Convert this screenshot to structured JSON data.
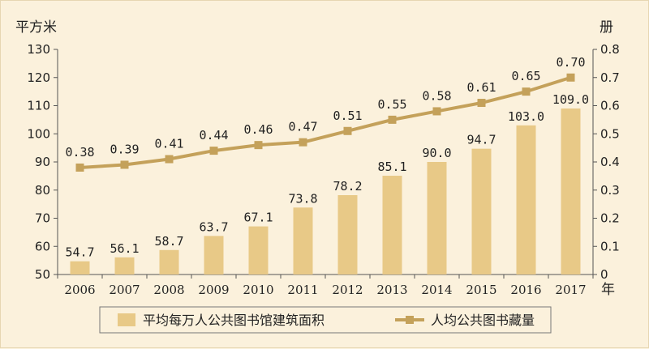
{
  "chart_data": {
    "type": "bar+line",
    "categories": [
      "2006",
      "2007",
      "2008",
      "2009",
      "2010",
      "2011",
      "2012",
      "2013",
      "2014",
      "2015",
      "2016",
      "2017"
    ],
    "series": [
      {
        "name": "平均每万人公共图书馆建筑面积",
        "type": "bar",
        "axis": "left",
        "values": [
          54.7,
          56.1,
          58.7,
          63.7,
          67.1,
          73.8,
          78.2,
          85.1,
          90.0,
          94.7,
          103.0,
          109.0
        ],
        "labels": [
          "54.7",
          "56.1",
          "58.7",
          "63.7",
          "67.1",
          "73.8",
          "78.2",
          "85.1",
          "90.0",
          "94.7",
          "103.0",
          "109.0"
        ],
        "color": "#e8c987"
      },
      {
        "name": "人均公共图书藏量",
        "type": "line",
        "axis": "right",
        "values": [
          0.38,
          0.39,
          0.41,
          0.44,
          0.46,
          0.47,
          0.51,
          0.55,
          0.58,
          0.61,
          0.65,
          0.7
        ],
        "labels": [
          "0.38",
          "0.39",
          "0.41",
          "0.44",
          "0.46",
          "0.47",
          "0.51",
          "0.55",
          "0.58",
          "0.61",
          "0.65",
          "0.70"
        ],
        "color": "#c4a15a"
      }
    ],
    "left_axis": {
      "unit": "平方米",
      "ylim": [
        50,
        130
      ],
      "ticks": [
        "50",
        "60",
        "70",
        "80",
        "90",
        "100",
        "110",
        "120",
        "130"
      ]
    },
    "right_axis": {
      "unit": "册",
      "ylim": [
        0,
        0.8
      ],
      "ticks": [
        "0",
        "0.1",
        "0.2",
        "0.3",
        "0.4",
        "0.5",
        "0.6",
        "0.7",
        "0.8"
      ]
    },
    "x_unit": "年",
    "grid": false,
    "legend_position": "bottom"
  }
}
